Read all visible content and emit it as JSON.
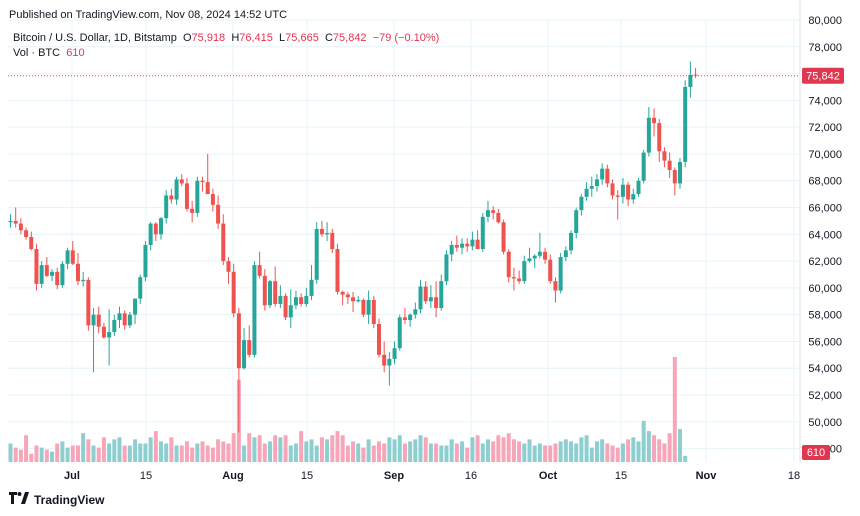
{
  "published": "Published on TradingView.com, Nov 08, 2024 14:52 UTC",
  "legend": {
    "symbol": "Bitcoin / U.S. Dollar, 1D, Bitstamp",
    "open_label": "O",
    "open": "75,918",
    "high_label": "H",
    "high": "76,415",
    "low_label": "L",
    "low": "75,665",
    "close_label": "C",
    "close": "75,842",
    "change": "−79 (−0.10%)"
  },
  "volume_legend": {
    "label": "Vol · BTC",
    "value": "610"
  },
  "brand": "TradingView",
  "colors": {
    "up": "#26a69a",
    "down": "#ef5350",
    "up_vol": "#8dcfd1",
    "down_vol": "#f7a5b8",
    "grid": "#e6f4f8",
    "price_tag": "#e0364f"
  },
  "chart_data": {
    "type": "candlestick",
    "title": "Bitcoin / U.S. Dollar, 1D, Bitstamp",
    "y_axis": {
      "min": 47000,
      "max": 80000,
      "ticks": [
        "80,000",
        "78,000",
        "76,000",
        "74,000",
        "72,000",
        "70,000",
        "68,000",
        "66,000",
        "64,000",
        "62,000",
        "60,000",
        "58,000",
        "56,000",
        "54,000",
        "52,000",
        "50,000",
        "48,000"
      ]
    },
    "x_ticks": [
      "Jul",
      "15",
      "Aug",
      "15",
      "Sep",
      "16",
      "Oct",
      "15",
      "Nov",
      "18"
    ],
    "last_price_label": "75,842",
    "volume_label": "610",
    "candles": [
      {
        "o": 64900,
        "h": 65500,
        "l": 64500,
        "c": 65000
      },
      {
        "o": 65000,
        "h": 66000,
        "l": 64500,
        "c": 64800
      },
      {
        "o": 64800,
        "h": 65200,
        "l": 64000,
        "c": 64300
      },
      {
        "o": 64300,
        "h": 64500,
        "l": 63600,
        "c": 63800
      },
      {
        "o": 63800,
        "h": 64200,
        "l": 62800,
        "c": 62900
      },
      {
        "o": 62900,
        "h": 63300,
        "l": 59800,
        "c": 60300
      },
      {
        "o": 60300,
        "h": 62000,
        "l": 60000,
        "c": 61700
      },
      {
        "o": 61700,
        "h": 62300,
        "l": 60800,
        "c": 60900
      },
      {
        "o": 60900,
        "h": 61400,
        "l": 60500,
        "c": 61200
      },
      {
        "o": 61200,
        "h": 61500,
        "l": 59900,
        "c": 60200
      },
      {
        "o": 60200,
        "h": 62000,
        "l": 60000,
        "c": 61800
      },
      {
        "o": 61800,
        "h": 63000,
        "l": 61400,
        "c": 62800
      },
      {
        "o": 62800,
        "h": 63500,
        "l": 61700,
        "c": 61800
      },
      {
        "o": 61800,
        "h": 62600,
        "l": 60200,
        "c": 60500
      },
      {
        "o": 60500,
        "h": 61200,
        "l": 60100,
        "c": 60600
      },
      {
        "o": 60600,
        "h": 60800,
        "l": 56800,
        "c": 57200
      },
      {
        "o": 57200,
        "h": 58500,
        "l": 53700,
        "c": 58000
      },
      {
        "o": 58000,
        "h": 58600,
        "l": 56600,
        "c": 57100
      },
      {
        "o": 57100,
        "h": 57400,
        "l": 56200,
        "c": 56300
      },
      {
        "o": 56300,
        "h": 58400,
        "l": 54200,
        "c": 56700
      },
      {
        "o": 56700,
        "h": 58000,
        "l": 56400,
        "c": 57600
      },
      {
        "o": 57600,
        "h": 58600,
        "l": 57000,
        "c": 58100
      },
      {
        "o": 58100,
        "h": 58300,
        "l": 56900,
        "c": 57200
      },
      {
        "o": 57200,
        "h": 58200,
        "l": 57000,
        "c": 58000
      },
      {
        "o": 58000,
        "h": 59200,
        "l": 57300,
        "c": 59200
      },
      {
        "o": 59200,
        "h": 61000,
        "l": 58800,
        "c": 60800
      },
      {
        "o": 60800,
        "h": 63500,
        "l": 60500,
        "c": 63200
      },
      {
        "o": 63200,
        "h": 64900,
        "l": 62800,
        "c": 64800
      },
      {
        "o": 64800,
        "h": 64900,
        "l": 63500,
        "c": 64000
      },
      {
        "o": 64000,
        "h": 65300,
        "l": 63600,
        "c": 65200
      },
      {
        "o": 65200,
        "h": 67300,
        "l": 64800,
        "c": 66900
      },
      {
        "o": 66900,
        "h": 67400,
        "l": 66300,
        "c": 66600
      },
      {
        "o": 66600,
        "h": 68300,
        "l": 66200,
        "c": 68100
      },
      {
        "o": 68100,
        "h": 68500,
        "l": 67600,
        "c": 67800
      },
      {
        "o": 67800,
        "h": 68200,
        "l": 65700,
        "c": 65900
      },
      {
        "o": 65900,
        "h": 66500,
        "l": 64900,
        "c": 65600
      },
      {
        "o": 65600,
        "h": 68300,
        "l": 65300,
        "c": 68000
      },
      {
        "o": 68000,
        "h": 68300,
        "l": 67200,
        "c": 67900
      },
      {
        "o": 67900,
        "h": 70000,
        "l": 67300,
        "c": 67000
      },
      {
        "o": 67000,
        "h": 67400,
        "l": 65700,
        "c": 66200
      },
      {
        "o": 66200,
        "h": 66900,
        "l": 64400,
        "c": 64800
      },
      {
        "o": 64800,
        "h": 65500,
        "l": 61700,
        "c": 62000
      },
      {
        "o": 62000,
        "h": 62300,
        "l": 60300,
        "c": 61200
      },
      {
        "o": 61200,
        "h": 61800,
        "l": 57800,
        "c": 58100
      },
      {
        "o": 58100,
        "h": 58500,
        "l": 49200,
        "c": 54000
      },
      {
        "o": 54000,
        "h": 57000,
        "l": 53900,
        "c": 56100
      },
      {
        "o": 56100,
        "h": 57200,
        "l": 54800,
        "c": 55000
      },
      {
        "o": 55000,
        "h": 62000,
        "l": 54800,
        "c": 61700
      },
      {
        "o": 61700,
        "h": 62700,
        "l": 60700,
        "c": 60900
      },
      {
        "o": 60900,
        "h": 61400,
        "l": 58300,
        "c": 58700
      },
      {
        "o": 58700,
        "h": 60600,
        "l": 58500,
        "c": 60500
      },
      {
        "o": 60500,
        "h": 61600,
        "l": 58600,
        "c": 58800
      },
      {
        "o": 58800,
        "h": 60200,
        "l": 58500,
        "c": 59400
      },
      {
        "o": 59400,
        "h": 59600,
        "l": 57600,
        "c": 57800
      },
      {
        "o": 57800,
        "h": 59900,
        "l": 57000,
        "c": 58700
      },
      {
        "o": 58700,
        "h": 59800,
        "l": 58400,
        "c": 59300
      },
      {
        "o": 59300,
        "h": 59600,
        "l": 58600,
        "c": 58800
      },
      {
        "o": 58800,
        "h": 60000,
        "l": 58600,
        "c": 59400
      },
      {
        "o": 59400,
        "h": 61700,
        "l": 59100,
        "c": 60600
      },
      {
        "o": 60600,
        "h": 64900,
        "l": 60300,
        "c": 64400
      },
      {
        "o": 64400,
        "h": 65000,
        "l": 63800,
        "c": 64000
      },
      {
        "o": 64000,
        "h": 64900,
        "l": 63500,
        "c": 64100
      },
      {
        "o": 64100,
        "h": 64400,
        "l": 62600,
        "c": 62900
      },
      {
        "o": 62900,
        "h": 63300,
        "l": 59500,
        "c": 59700
      },
      {
        "o": 59700,
        "h": 59800,
        "l": 58700,
        "c": 59500
      },
      {
        "o": 59500,
        "h": 59700,
        "l": 58800,
        "c": 59300
      },
      {
        "o": 59300,
        "h": 59700,
        "l": 58200,
        "c": 59000
      },
      {
        "o": 59000,
        "h": 59400,
        "l": 58900,
        "c": 59100
      },
      {
        "o": 59100,
        "h": 59200,
        "l": 57800,
        "c": 58000
      },
      {
        "o": 58000,
        "h": 59800,
        "l": 57300,
        "c": 59100
      },
      {
        "o": 59100,
        "h": 59400,
        "l": 57000,
        "c": 57300
      },
      {
        "o": 57300,
        "h": 57700,
        "l": 54800,
        "c": 55000
      },
      {
        "o": 55000,
        "h": 56000,
        "l": 53700,
        "c": 54200
      },
      {
        "o": 54200,
        "h": 55200,
        "l": 52700,
        "c": 54700
      },
      {
        "o": 54700,
        "h": 56000,
        "l": 54300,
        "c": 55500
      },
      {
        "o": 55500,
        "h": 58000,
        "l": 55300,
        "c": 57800
      },
      {
        "o": 57800,
        "h": 58500,
        "l": 57300,
        "c": 57600
      },
      {
        "o": 57600,
        "h": 58100,
        "l": 57100,
        "c": 58000
      },
      {
        "o": 58000,
        "h": 58900,
        "l": 57700,
        "c": 58400
      },
      {
        "o": 58400,
        "h": 60600,
        "l": 58100,
        "c": 60100
      },
      {
        "o": 60100,
        "h": 60500,
        "l": 58800,
        "c": 59000
      },
      {
        "o": 59000,
        "h": 60200,
        "l": 58500,
        "c": 59300
      },
      {
        "o": 59300,
        "h": 60500,
        "l": 57800,
        "c": 58500
      },
      {
        "o": 58500,
        "h": 61000,
        "l": 58300,
        "c": 60500
      },
      {
        "o": 60500,
        "h": 62800,
        "l": 60200,
        "c": 62500
      },
      {
        "o": 62500,
        "h": 63500,
        "l": 62000,
        "c": 63200
      },
      {
        "o": 63200,
        "h": 63900,
        "l": 62700,
        "c": 63000
      },
      {
        "o": 63000,
        "h": 63700,
        "l": 62500,
        "c": 63300
      },
      {
        "o": 63300,
        "h": 63700,
        "l": 62700,
        "c": 63100
      },
      {
        "o": 63100,
        "h": 64200,
        "l": 62800,
        "c": 63600
      },
      {
        "o": 63600,
        "h": 64300,
        "l": 62900,
        "c": 62900
      },
      {
        "o": 62900,
        "h": 65600,
        "l": 62700,
        "c": 65300
      },
      {
        "o": 65300,
        "h": 66500,
        "l": 64900,
        "c": 65800
      },
      {
        "o": 65800,
        "h": 66100,
        "l": 65100,
        "c": 65600
      },
      {
        "o": 65600,
        "h": 65900,
        "l": 64800,
        "c": 64900
      },
      {
        "o": 64900,
        "h": 65100,
        "l": 62500,
        "c": 62700
      },
      {
        "o": 62700,
        "h": 62900,
        "l": 60400,
        "c": 60800
      },
      {
        "o": 60800,
        "h": 61500,
        "l": 59800,
        "c": 60700
      },
      {
        "o": 60700,
        "h": 61300,
        "l": 60300,
        "c": 60500
      },
      {
        "o": 60500,
        "h": 62400,
        "l": 60300,
        "c": 62000
      },
      {
        "o": 62000,
        "h": 63000,
        "l": 61900,
        "c": 62200
      },
      {
        "o": 62200,
        "h": 62500,
        "l": 61500,
        "c": 62400
      },
      {
        "o": 62400,
        "h": 64100,
        "l": 62200,
        "c": 62700
      },
      {
        "o": 62700,
        "h": 63000,
        "l": 61800,
        "c": 62100
      },
      {
        "o": 62100,
        "h": 62500,
        "l": 60300,
        "c": 60500
      },
      {
        "o": 60500,
        "h": 60800,
        "l": 58900,
        "c": 59800
      },
      {
        "o": 59800,
        "h": 62600,
        "l": 59600,
        "c": 62300
      },
      {
        "o": 62300,
        "h": 63100,
        "l": 62000,
        "c": 62800
      },
      {
        "o": 62800,
        "h": 64300,
        "l": 62500,
        "c": 64100
      },
      {
        "o": 64100,
        "h": 66000,
        "l": 63700,
        "c": 65800
      },
      {
        "o": 65800,
        "h": 67000,
        "l": 65400,
        "c": 66800
      },
      {
        "o": 66800,
        "h": 67900,
        "l": 66500,
        "c": 67400
      },
      {
        "o": 67400,
        "h": 68300,
        "l": 66800,
        "c": 67600
      },
      {
        "o": 67600,
        "h": 68500,
        "l": 67200,
        "c": 68100
      },
      {
        "o": 68100,
        "h": 69300,
        "l": 67700,
        "c": 68900
      },
      {
        "o": 68900,
        "h": 69200,
        "l": 67500,
        "c": 67800
      },
      {
        "o": 67800,
        "h": 68100,
        "l": 66600,
        "c": 66900
      },
      {
        "o": 66900,
        "h": 67300,
        "l": 65100,
        "c": 66800
      },
      {
        "o": 66800,
        "h": 68200,
        "l": 66300,
        "c": 67700
      },
      {
        "o": 67700,
        "h": 67900,
        "l": 66100,
        "c": 66600
      },
      {
        "o": 66600,
        "h": 67400,
        "l": 66300,
        "c": 67000
      },
      {
        "o": 67000,
        "h": 68200,
        "l": 66800,
        "c": 68000
      },
      {
        "o": 68000,
        "h": 70300,
        "l": 67800,
        "c": 70100
      },
      {
        "o": 70100,
        "h": 73500,
        "l": 69800,
        "c": 72700
      },
      {
        "o": 72700,
        "h": 73400,
        "l": 71300,
        "c": 72300
      },
      {
        "o": 72300,
        "h": 72600,
        "l": 69400,
        "c": 70200
      },
      {
        "o": 70200,
        "h": 70500,
        "l": 69000,
        "c": 69500
      },
      {
        "o": 69500,
        "h": 70100,
        "l": 68200,
        "c": 68800
      },
      {
        "o": 68800,
        "h": 69000,
        "l": 66900,
        "c": 67800
      },
      {
        "o": 67800,
        "h": 69700,
        "l": 67400,
        "c": 69400
      },
      {
        "o": 69400,
        "h": 75500,
        "l": 69000,
        "c": 75000
      },
      {
        "o": 75000,
        "h": 76900,
        "l": 74200,
        "c": 75900
      },
      {
        "o": 75918,
        "h": 76415,
        "l": 75665,
        "c": 75842
      }
    ],
    "volumes": [
      9,
      7,
      6,
      13,
      4,
      8,
      7,
      6,
      5,
      9,
      10,
      7,
      8,
      8,
      14,
      11,
      8,
      7,
      12,
      9,
      11,
      12,
      8,
      8,
      11,
      9,
      9,
      12,
      15,
      10,
      9,
      12,
      8,
      8,
      10,
      7,
      9,
      10,
      8,
      7,
      11,
      10,
      9,
      14,
      40,
      8,
      14,
      12,
      13,
      9,
      10,
      13,
      12,
      13,
      8,
      9,
      15,
      10,
      11,
      8,
      12,
      11,
      13,
      15,
      13,
      8,
      10,
      9,
      7,
      11,
      8,
      10,
      9,
      12,
      11,
      13,
      9,
      10,
      11,
      13,
      12,
      9,
      9,
      8,
      8,
      11,
      9,
      10,
      7,
      12,
      13,
      9,
      11,
      10,
      13,
      12,
      14,
      11,
      10,
      9,
      11,
      8,
      9,
      8,
      8,
      9,
      10,
      11,
      10,
      9,
      12,
      13,
      7,
      10,
      11,
      9,
      8,
      7,
      9,
      11,
      12,
      10,
      20,
      15,
      13,
      11,
      9,
      14,
      51,
      16,
      3
    ]
  }
}
